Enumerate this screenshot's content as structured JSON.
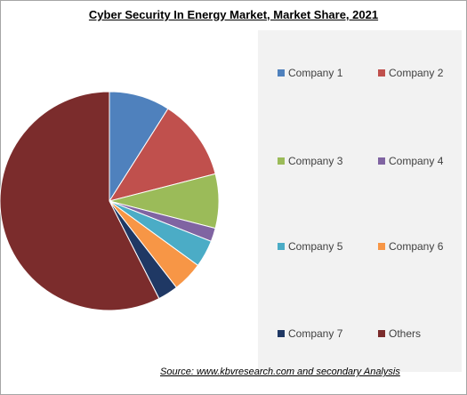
{
  "chart_data": {
    "type": "pie",
    "title": "Cyber Security In Energy Market, Market Share, 2021",
    "series": [
      {
        "name": "Company 1",
        "value": 9.0,
        "color": "#4f81bd"
      },
      {
        "name": "Company 2",
        "value": 12.0,
        "color": "#c0504d"
      },
      {
        "name": "Company 3",
        "value": 8.0,
        "color": "#9bbb59"
      },
      {
        "name": "Company 4",
        "value": 2.0,
        "color": "#8064a2"
      },
      {
        "name": "Company 5",
        "value": 4.0,
        "color": "#4bacc6"
      },
      {
        "name": "Company 6",
        "value": 4.5,
        "color": "#f79646"
      },
      {
        "name": "Company 7",
        "value": 3.0,
        "color": "#1f3864"
      },
      {
        "name": "Others",
        "value": 57.5,
        "color": "#7b2c2c"
      }
    ],
    "legend_position": "right"
  },
  "source_text": "Source:  www.kbvresearch.com  and secondary Analysis"
}
